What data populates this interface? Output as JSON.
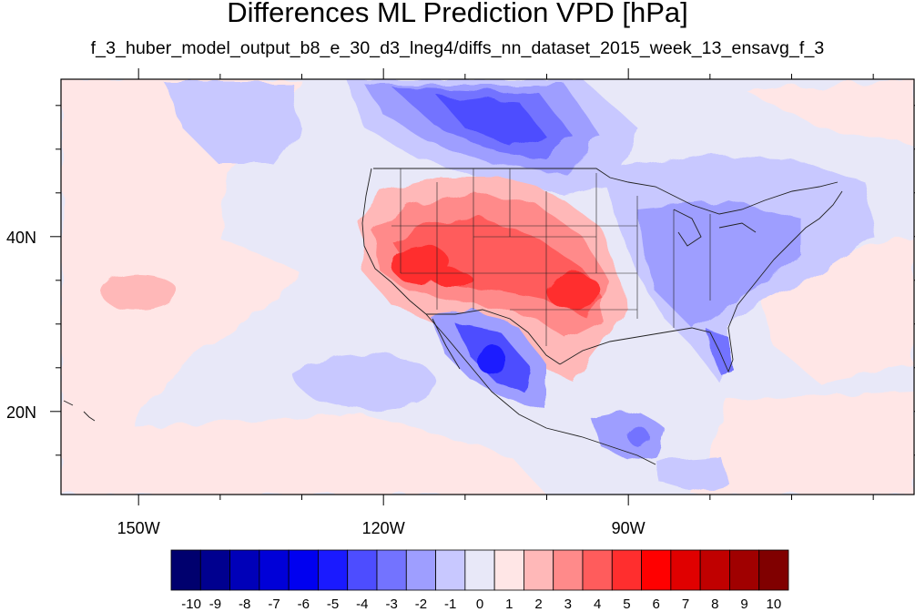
{
  "chart_data": {
    "type": "heatmap",
    "title": "Differences ML Prediction VPD [hPa]",
    "subtitle": "f_3_huber_model_output_b8_e_30_d3_lneg4/diffs_nn_dataset_2015_week_13_ensavg_f_3",
    "x_ticks": [
      {
        "lon": -150,
        "label": "150W"
      },
      {
        "lon": -120,
        "label": "120W"
      },
      {
        "lon": -90,
        "label": "90W"
      }
    ],
    "y_ticks": [
      {
        "lat": 40,
        "label": "40N"
      },
      {
        "lat": 20,
        "label": "20N"
      }
    ],
    "lon_range": [
      -159.5,
      -55
    ],
    "lat_range": [
      10.5,
      58
    ],
    "colorbar": {
      "levels": [
        -10,
        -9,
        -8,
        -7,
        -6,
        -5,
        -4,
        -3,
        -2,
        -1,
        0,
        1,
        2,
        3,
        4,
        5,
        6,
        7,
        8,
        9,
        10
      ],
      "labels": [
        "-10",
        "-9",
        "-8",
        "-7",
        "-6",
        "-5",
        "-4",
        "-3",
        "-2",
        "-1",
        "0",
        "1",
        "2",
        "3",
        "4",
        "5",
        "6",
        "7",
        "8",
        "9",
        "10"
      ],
      "colors": [
        "#00006e",
        "#00008f",
        "#0000b8",
        "#0000d8",
        "#0000f0",
        "#1a1aff",
        "#4d4dff",
        "#7373ff",
        "#9e9eff",
        "#c8c8ff",
        "#e8e8f8",
        "#ffe6e6",
        "#ffb8b8",
        "#ff8a8a",
        "#ff5c5c",
        "#ff2e2e",
        "#ff0000",
        "#e00000",
        "#c00000",
        "#a00000",
        "#800000"
      ]
    },
    "regions": [
      {
        "feature": "southwest-us-positive",
        "lon": -115,
        "lat": 36.5,
        "value": 5
      },
      {
        "feature": "central-plains-positive",
        "lon": -104,
        "lat": 38.5,
        "value": 3
      },
      {
        "feature": "texas-oklahoma-positive",
        "lon": -99,
        "lat": 33.5,
        "value": 5
      },
      {
        "feature": "canadian-prairies-negative",
        "lon": -110,
        "lat": 54,
        "value": -4
      },
      {
        "feature": "eastern-us-negative",
        "lon": -86,
        "lat": 37,
        "value": -2
      },
      {
        "feature": "northern-mexico-negative",
        "lon": -106,
        "lat": 26.5,
        "value": -5
      },
      {
        "feature": "central-america-negative",
        "lon": -90,
        "lat": 17,
        "value": -3
      },
      {
        "feature": "pacific-subtropical-positive",
        "lon": -148,
        "lat": 35,
        "value": 2
      },
      {
        "feature": "pacific-southwest-negative",
        "lon": -127,
        "lat": 22,
        "value": -2
      }
    ]
  }
}
